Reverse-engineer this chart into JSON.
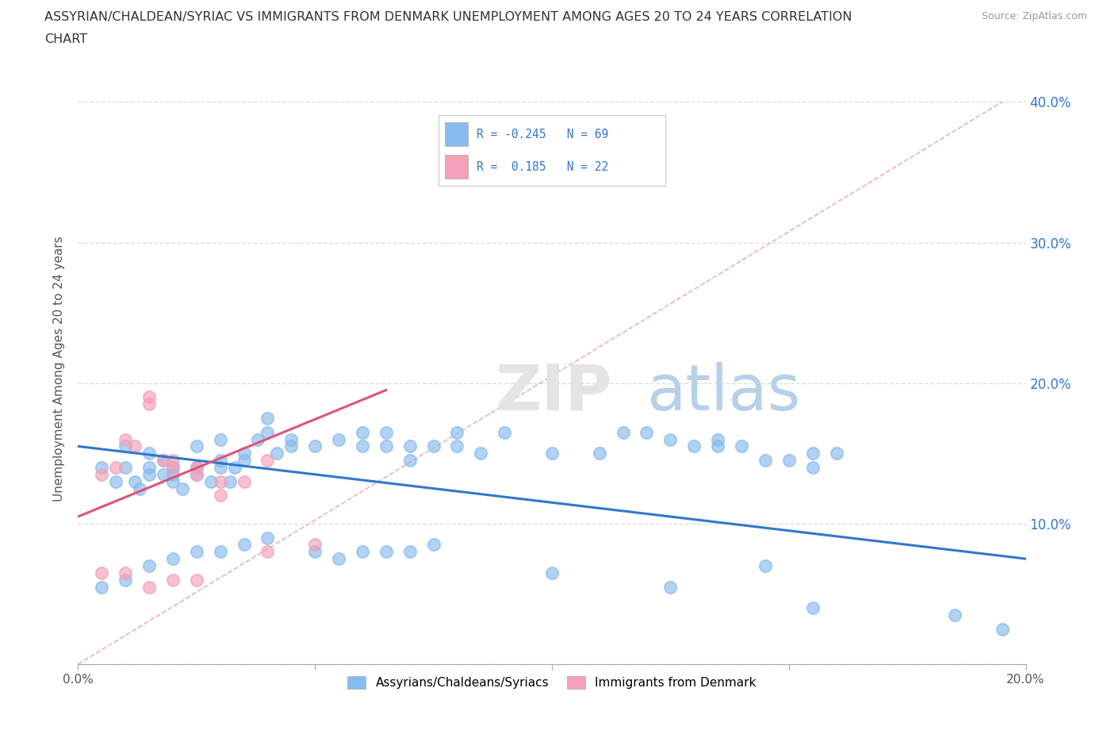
{
  "title_line1": "ASSYRIAN/CHALDEAN/SYRIAC VS IMMIGRANTS FROM DENMARK UNEMPLOYMENT AMONG AGES 20 TO 24 YEARS CORRELATION",
  "title_line2": "CHART",
  "source": "Source: ZipAtlas.com",
  "ylabel": "Unemployment Among Ages 20 to 24 years",
  "xlim": [
    0.0,
    0.2
  ],
  "ylim": [
    0.0,
    0.42
  ],
  "xticks": [
    0.0,
    0.05,
    0.1,
    0.15,
    0.2
  ],
  "xtick_labels": [
    "0.0%",
    "",
    "",
    "",
    "20.0%"
  ],
  "yticks": [
    0.0,
    0.1,
    0.2,
    0.3,
    0.4
  ],
  "ytick_labels_right": [
    "",
    "10.0%",
    "20.0%",
    "30.0%",
    "40.0%"
  ],
  "blue_color": "#88bbee",
  "pink_color": "#f4a0b8",
  "trend_blue": "#3377cc",
  "trend_pink": "#dd5577",
  "trend_gray": "#cccccc",
  "blue_scatter": [
    [
      0.005,
      0.14
    ],
    [
      0.008,
      0.13
    ],
    [
      0.01,
      0.14
    ],
    [
      0.01,
      0.155
    ],
    [
      0.012,
      0.13
    ],
    [
      0.013,
      0.125
    ],
    [
      0.015,
      0.135
    ],
    [
      0.015,
      0.14
    ],
    [
      0.015,
      0.15
    ],
    [
      0.018,
      0.135
    ],
    [
      0.018,
      0.145
    ],
    [
      0.02,
      0.13
    ],
    [
      0.02,
      0.135
    ],
    [
      0.02,
      0.14
    ],
    [
      0.022,
      0.125
    ],
    [
      0.025,
      0.14
    ],
    [
      0.025,
      0.135
    ],
    [
      0.025,
      0.155
    ],
    [
      0.028,
      0.13
    ],
    [
      0.03,
      0.14
    ],
    [
      0.03,
      0.145
    ],
    [
      0.03,
      0.16
    ],
    [
      0.032,
      0.13
    ],
    [
      0.033,
      0.14
    ],
    [
      0.035,
      0.145
    ],
    [
      0.035,
      0.15
    ],
    [
      0.038,
      0.16
    ],
    [
      0.04,
      0.165
    ],
    [
      0.04,
      0.175
    ],
    [
      0.042,
      0.15
    ],
    [
      0.045,
      0.155
    ],
    [
      0.045,
      0.16
    ],
    [
      0.05,
      0.155
    ],
    [
      0.055,
      0.16
    ],
    [
      0.06,
      0.155
    ],
    [
      0.06,
      0.165
    ],
    [
      0.065,
      0.155
    ],
    [
      0.065,
      0.165
    ],
    [
      0.07,
      0.145
    ],
    [
      0.07,
      0.155
    ],
    [
      0.075,
      0.155
    ],
    [
      0.08,
      0.155
    ],
    [
      0.08,
      0.165
    ],
    [
      0.085,
      0.15
    ],
    [
      0.09,
      0.165
    ],
    [
      0.1,
      0.15
    ],
    [
      0.11,
      0.15
    ],
    [
      0.115,
      0.165
    ],
    [
      0.12,
      0.165
    ],
    [
      0.125,
      0.16
    ],
    [
      0.13,
      0.155
    ],
    [
      0.135,
      0.155
    ],
    [
      0.135,
      0.16
    ],
    [
      0.14,
      0.155
    ],
    [
      0.145,
      0.145
    ],
    [
      0.15,
      0.145
    ],
    [
      0.155,
      0.14
    ],
    [
      0.155,
      0.15
    ],
    [
      0.16,
      0.15
    ],
    [
      0.005,
      0.055
    ],
    [
      0.01,
      0.06
    ],
    [
      0.015,
      0.07
    ],
    [
      0.02,
      0.075
    ],
    [
      0.025,
      0.08
    ],
    [
      0.03,
      0.08
    ],
    [
      0.035,
      0.085
    ],
    [
      0.04,
      0.09
    ],
    [
      0.05,
      0.08
    ],
    [
      0.055,
      0.075
    ],
    [
      0.06,
      0.08
    ],
    [
      0.065,
      0.08
    ],
    [
      0.07,
      0.08
    ],
    [
      0.075,
      0.085
    ],
    [
      0.1,
      0.065
    ],
    [
      0.125,
      0.055
    ],
    [
      0.145,
      0.07
    ],
    [
      0.155,
      0.04
    ],
    [
      0.185,
      0.035
    ],
    [
      0.195,
      0.025
    ]
  ],
  "pink_scatter": [
    [
      0.005,
      0.135
    ],
    [
      0.008,
      0.14
    ],
    [
      0.01,
      0.16
    ],
    [
      0.012,
      0.155
    ],
    [
      0.015,
      0.185
    ],
    [
      0.015,
      0.19
    ],
    [
      0.018,
      0.145
    ],
    [
      0.02,
      0.14
    ],
    [
      0.02,
      0.145
    ],
    [
      0.025,
      0.135
    ],
    [
      0.025,
      0.14
    ],
    [
      0.03,
      0.13
    ],
    [
      0.03,
      0.12
    ],
    [
      0.035,
      0.13
    ],
    [
      0.04,
      0.145
    ],
    [
      0.005,
      0.065
    ],
    [
      0.01,
      0.065
    ],
    [
      0.015,
      0.055
    ],
    [
      0.02,
      0.06
    ],
    [
      0.025,
      0.06
    ],
    [
      0.04,
      0.08
    ],
    [
      0.05,
      0.085
    ]
  ],
  "blue_trend_x": [
    0.0,
    0.2
  ],
  "blue_trend_y": [
    0.155,
    0.075
  ],
  "pink_trend_x": [
    0.0,
    0.065
  ],
  "pink_trend_y": [
    0.105,
    0.195
  ],
  "gray_trend_x": [
    0.0,
    0.195
  ],
  "gray_trend_y": [
    0.0,
    0.4
  ]
}
